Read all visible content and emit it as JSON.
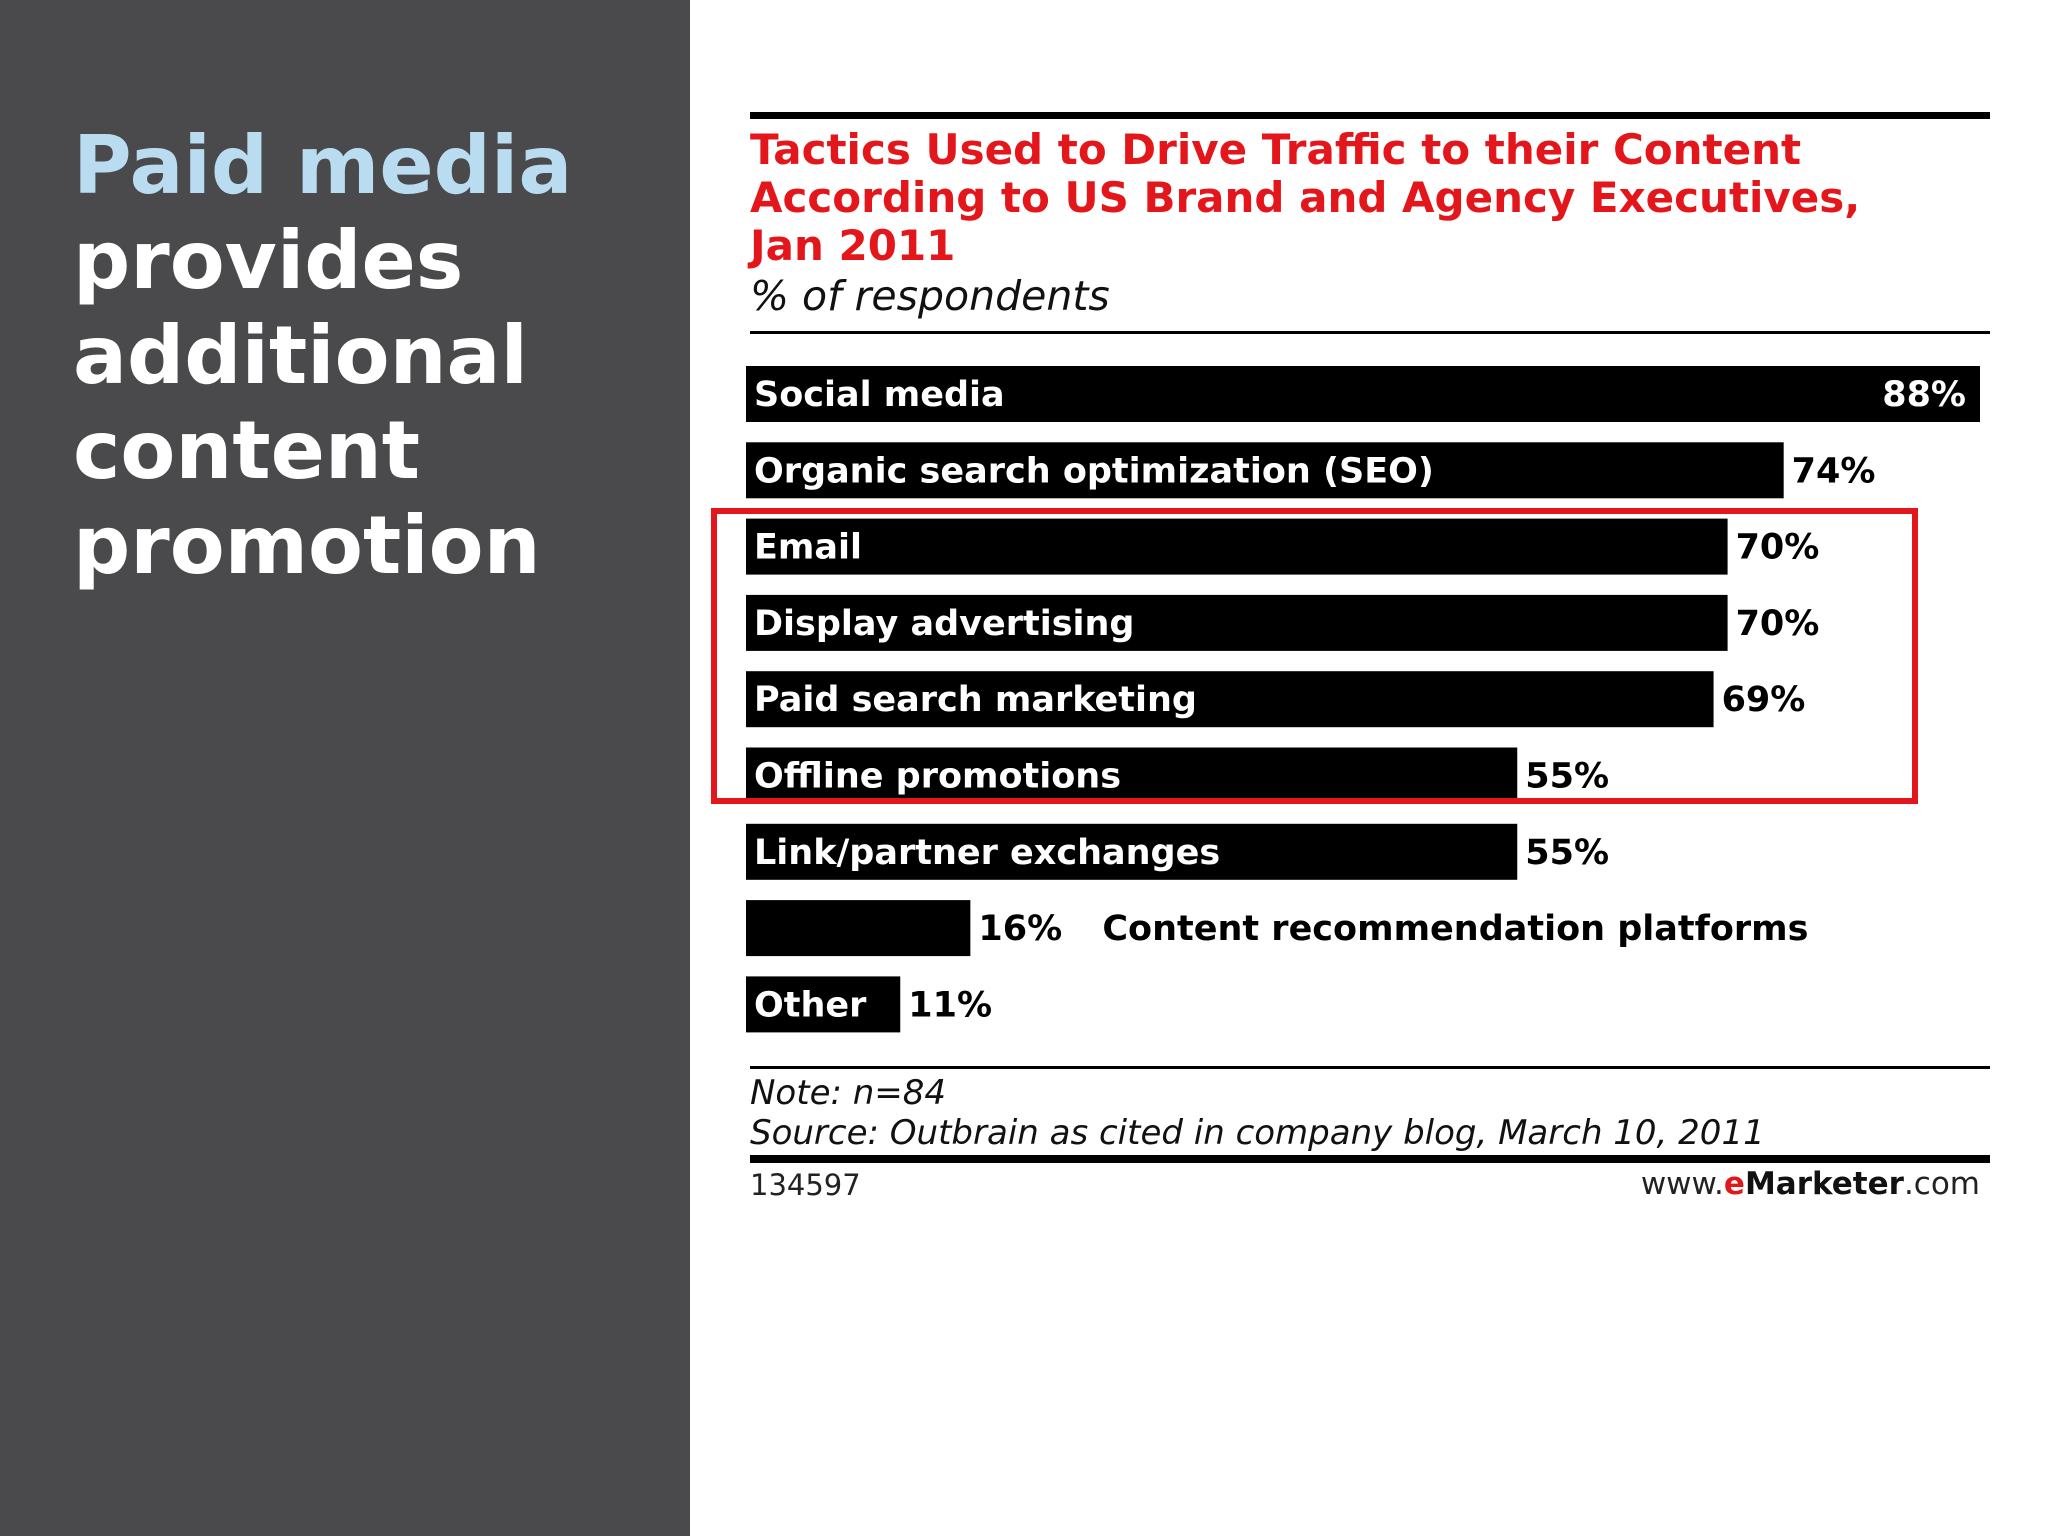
{
  "slide": {
    "headline_highlight": "Paid media",
    "headline_rest": [
      "provides",
      "additional",
      "content",
      "promotion"
    ]
  },
  "colors": {
    "left_panel": "#4a4a4c",
    "headline_highlight": "#b9dcf1",
    "chart_title": "#e3161b",
    "bars": "#000000",
    "highlight_box": "#e3161b"
  },
  "chart_data": {
    "type": "bar",
    "orientation": "horizontal",
    "title": [
      "Tactics Used to Drive Traffic to their Content",
      "According to US Brand and Agency Executives,",
      "Jan 2011"
    ],
    "subtitle": "% of respondents",
    "categories": [
      "Social media",
      "Organic search optimization (SEO)",
      "Email",
      "Display advertising",
      "Paid search marketing",
      "Offline promotions",
      "Link/partner exchanges",
      "Content recommendation platforms",
      "Other"
    ],
    "values": [
      88,
      74,
      70,
      70,
      69,
      55,
      55,
      16,
      11
    ],
    "value_labels": [
      "88%",
      "74%",
      "70%",
      "70%",
      "69%",
      "55%",
      "55%",
      "16%",
      "11%"
    ],
    "xlim": [
      0,
      88
    ],
    "grid": false,
    "highlighted_categories": [
      "Email",
      "Display advertising",
      "Paid search marketing",
      "Offline promotions"
    ],
    "note": "Note: n=84",
    "source": "Source: Outbrain as cited in company blog, March 10, 2011",
    "chart_id": "134597",
    "logo": {
      "prefix": "www.",
      "e": "e",
      "brand": "Marketer",
      "suffix": ".com"
    }
  }
}
